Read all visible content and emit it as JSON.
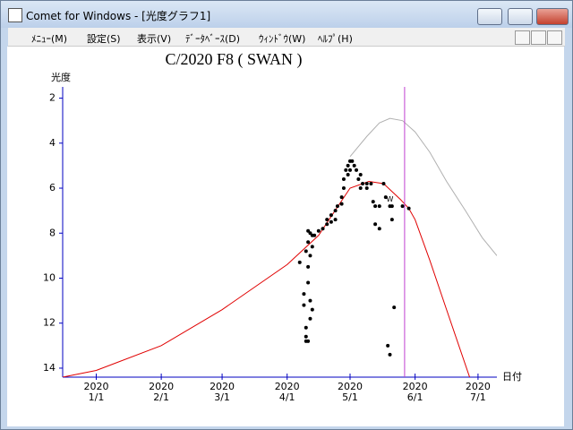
{
  "window": {
    "title": "Comet for Windows - [光度グラフ1]"
  },
  "menu": [
    "ﾒﾆｭｰ(M)",
    "設定(S)",
    "表示(V)",
    "ﾃﾞｰﾀﾍﾞｰｽ(D)",
    "ｳｨﾝﾄﾞｳ(W)",
    "ﾍﾙﾌﾟ(H)"
  ],
  "chart_data": {
    "type": "line",
    "title": "C/2020 F8 ( SWAN )",
    "y_label": "光度",
    "x_label": "日付",
    "xlim": [
      "2019-12-16",
      "2020-07-10"
    ],
    "xticks": [
      {
        "value": "2020-01-01",
        "label": "1/1",
        "year": "2020"
      },
      {
        "value": "2020-02-01",
        "label": "2/1",
        "year": "2020"
      },
      {
        "value": "2020-03-01",
        "label": "3/1",
        "year": "2020"
      },
      {
        "value": "2020-04-01",
        "label": "4/1",
        "year": "2020"
      },
      {
        "value": "2020-05-01",
        "label": "5/1",
        "year": "2020"
      },
      {
        "value": "2020-06-01",
        "label": "6/1",
        "year": "2020"
      },
      {
        "value": "2020-07-01",
        "label": "7/1",
        "year": "2020"
      }
    ],
    "ylim": [
      14.4,
      1.5
    ],
    "yticks": [
      2,
      4,
      6,
      8,
      10,
      12,
      14
    ],
    "axis_color": "#0000c0",
    "vline": {
      "x": "2020-05-27",
      "color": "#c040d0"
    },
    "annotations": [
      {
        "text": "W",
        "x": "2020-05-20",
        "y": 6.5
      }
    ],
    "series": [
      {
        "type": "line",
        "color": "#e00000",
        "x": [
          "2019-12-16",
          "2020-01-01",
          "2020-02-01",
          "2020-03-01",
          "2020-04-01",
          "2020-04-16",
          "2020-05-01",
          "2020-05-10",
          "2020-05-17",
          "2020-05-25",
          "2020-05-29",
          "2020-06-01",
          "2020-06-08",
          "2020-06-16",
          "2020-06-27"
        ],
        "values": [
          14.4,
          14.1,
          13.0,
          11.4,
          9.4,
          8.1,
          6.0,
          5.7,
          5.8,
          6.5,
          6.9,
          7.4,
          9.2,
          11.4,
          14.4
        ]
      },
      {
        "type": "line",
        "color": "#b0b0b0",
        "x": [
          "2020-05-01",
          "2020-05-09",
          "2020-05-15",
          "2020-05-20",
          "2020-05-26",
          "2020-06-01",
          "2020-06-08",
          "2020-06-16",
          "2020-06-25",
          "2020-07-03",
          "2020-07-10"
        ],
        "values": [
          4.6,
          3.7,
          3.1,
          2.9,
          3.0,
          3.5,
          4.4,
          5.7,
          7.0,
          8.2,
          9.0
        ]
      },
      {
        "type": "scatter",
        "color": "#000000",
        "x": [
          "2020-04-07",
          "2020-04-09",
          "2020-04-09",
          "2020-04-10",
          "2020-04-10",
          "2020-04-10",
          "2020-04-10",
          "2020-04-11",
          "2020-04-11",
          "2020-04-11",
          "2020-04-11",
          "2020-04-11",
          "2020-04-12",
          "2020-04-12",
          "2020-04-12",
          "2020-04-12",
          "2020-04-13",
          "2020-04-13",
          "2020-04-13",
          "2020-04-14",
          "2020-04-16",
          "2020-04-18",
          "2020-04-20",
          "2020-04-20",
          "2020-04-22",
          "2020-04-22",
          "2020-04-24",
          "2020-04-24",
          "2020-04-25",
          "2020-04-27",
          "2020-04-27",
          "2020-04-28",
          "2020-04-28",
          "2020-04-29",
          "2020-04-30",
          "2020-04-30",
          "2020-05-01",
          "2020-05-01",
          "2020-05-02",
          "2020-05-03",
          "2020-05-04",
          "2020-05-05",
          "2020-05-06",
          "2020-05-06",
          "2020-05-07",
          "2020-05-09",
          "2020-05-09",
          "2020-05-11",
          "2020-05-12",
          "2020-05-13",
          "2020-05-13",
          "2020-05-15",
          "2020-05-15",
          "2020-05-17",
          "2020-05-18",
          "2020-05-19",
          "2020-05-20",
          "2020-05-20",
          "2020-05-21",
          "2020-05-21",
          "2020-05-22",
          "2020-05-26",
          "2020-05-29"
        ],
        "values": [
          9.3,
          10.7,
          11.2,
          12.2,
          12.6,
          12.8,
          8.8,
          7.9,
          8.4,
          9.5,
          10.2,
          12.8,
          8.0,
          9.0,
          11.0,
          11.8,
          8.1,
          8.6,
          11.4,
          8.1,
          7.9,
          7.8,
          7.4,
          7.6,
          7.2,
          7.5,
          7.0,
          7.4,
          6.8,
          6.4,
          6.7,
          5.6,
          6.0,
          5.2,
          5.0,
          5.4,
          4.8,
          5.2,
          4.8,
          5.0,
          5.2,
          5.6,
          5.4,
          6.0,
          5.8,
          5.8,
          6.0,
          5.8,
          6.6,
          6.8,
          7.6,
          6.8,
          7.8,
          5.8,
          6.4,
          13.0,
          13.4,
          6.8,
          6.8,
          7.4,
          11.3,
          6.8,
          6.9
        ]
      }
    ]
  }
}
